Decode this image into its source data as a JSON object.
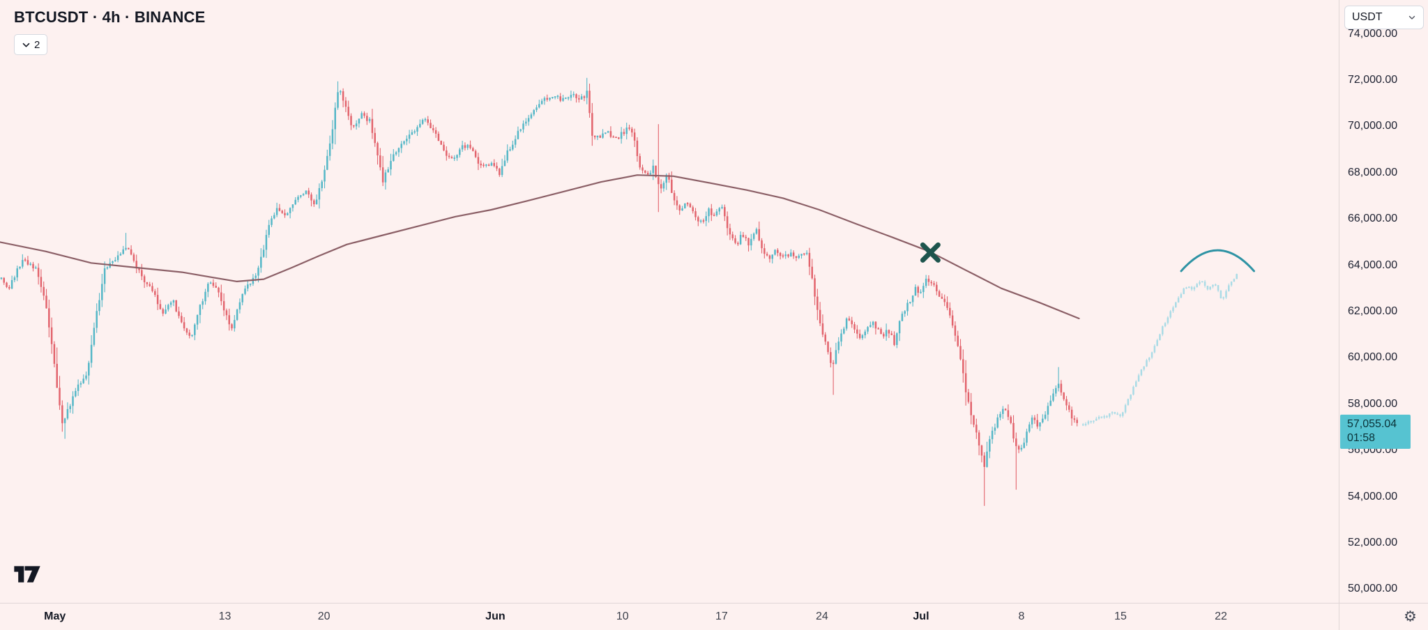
{
  "app": {
    "symbol_title": "BTCUSDT · 4h · BINANCE",
    "indicators_badge": "2",
    "currency": "USDT"
  },
  "colors": {
    "background": "#fdf1f0",
    "candle_up": "#54b7c7",
    "candle_down": "#e2636c",
    "candle_ghost": "#a9dbe6",
    "ma_line": "#8b5f66",
    "x_marker": "#1d544d",
    "arc_drawing": "#2e93a4",
    "axis_text": "#131722",
    "price_tag_bg": "#56c3d1",
    "price_tag_text": "#0a3238"
  },
  "last_price": {
    "label": "57,055.04",
    "countdown": "01:58",
    "value": 57055.04
  },
  "price_axis": {
    "labels": [
      "74,000.00",
      "72,000.00",
      "70,000.00",
      "68,000.00",
      "66,000.00",
      "64,000.00",
      "62,000.00",
      "60,000.00",
      "58,000.00",
      "56,000.00",
      "54,000.00",
      "52,000.00",
      "50,000.00"
    ],
    "values": [
      74000,
      72000,
      70000,
      68000,
      66000,
      64000,
      62000,
      60000,
      58000,
      56000,
      54000,
      52000,
      50000
    ]
  },
  "time_axis": {
    "labels": [
      {
        "text": "May",
        "x": 0.041,
        "major": true
      },
      {
        "text": "13",
        "x": 0.168,
        "major": false
      },
      {
        "text": "20",
        "x": 0.242,
        "major": false
      },
      {
        "text": "Jun",
        "x": 0.37,
        "major": true
      },
      {
        "text": "10",
        "x": 0.465,
        "major": false
      },
      {
        "text": "17",
        "x": 0.539,
        "major": false
      },
      {
        "text": "24",
        "x": 0.614,
        "major": false
      },
      {
        "text": "Jul",
        "x": 0.688,
        "major": true
      },
      {
        "text": "8",
        "x": 0.763,
        "major": false
      },
      {
        "text": "15",
        "x": 0.837,
        "major": false
      },
      {
        "text": "22",
        "x": 0.912,
        "major": false
      }
    ]
  },
  "chart_data": {
    "type": "candlestick",
    "symbol": "BTCUSDT",
    "interval": "4h",
    "exchange": "BINANCE",
    "price_top": 75466,
    "price_bottom": 49410,
    "real_range": [
      0.001,
      0.806
    ],
    "ghost_range": [
      0.809,
      0.924
    ],
    "price_path": [
      [
        0,
        63500
      ],
      [
        0.007,
        63000
      ],
      [
        0.017,
        64300
      ],
      [
        0.027,
        63800
      ],
      [
        0.034,
        62500
      ],
      [
        0.041,
        59500
      ],
      [
        0.046,
        57200
      ],
      [
        0.051,
        57800
      ],
      [
        0.058,
        58800
      ],
      [
        0.065,
        59300
      ],
      [
        0.071,
        61500
      ],
      [
        0.078,
        63800
      ],
      [
        0.085,
        64200
      ],
      [
        0.095,
        64800
      ],
      [
        0.102,
        63900
      ],
      [
        0.109,
        63200
      ],
      [
        0.116,
        62700
      ],
      [
        0.122,
        61800
      ],
      [
        0.129,
        62500
      ],
      [
        0.136,
        61400
      ],
      [
        0.143,
        60900
      ],
      [
        0.15,
        62300
      ],
      [
        0.156,
        63400
      ],
      [
        0.163,
        62800
      ],
      [
        0.17,
        61700
      ],
      [
        0.173,
        61200
      ],
      [
        0.18,
        62700
      ],
      [
        0.187,
        63200
      ],
      [
        0.194,
        64000
      ],
      [
        0.201,
        65800
      ],
      [
        0.207,
        66400
      ],
      [
        0.214,
        66100
      ],
      [
        0.221,
        66800
      ],
      [
        0.228,
        67200
      ],
      [
        0.235,
        66600
      ],
      [
        0.241,
        67800
      ],
      [
        0.248,
        69800
      ],
      [
        0.253,
        71800
      ],
      [
        0.259,
        70600
      ],
      [
        0.264,
        69900
      ],
      [
        0.269,
        70500
      ],
      [
        0.276,
        70300
      ],
      [
        0.28,
        69400
      ],
      [
        0.286,
        67600
      ],
      [
        0.291,
        68400
      ],
      [
        0.298,
        69200
      ],
      [
        0.305,
        69500
      ],
      [
        0.312,
        69900
      ],
      [
        0.318,
        70400
      ],
      [
        0.325,
        69700
      ],
      [
        0.332,
        68900
      ],
      [
        0.339,
        68500
      ],
      [
        0.346,
        69200
      ],
      [
        0.352,
        69000
      ],
      [
        0.359,
        68200
      ],
      [
        0.366,
        68400
      ],
      [
        0.373,
        68000
      ],
      [
        0.38,
        69000
      ],
      [
        0.386,
        69600
      ],
      [
        0.393,
        70300
      ],
      [
        0.4,
        70900
      ],
      [
        0.407,
        71200
      ],
      [
        0.414,
        71400
      ],
      [
        0.42,
        71100
      ],
      [
        0.427,
        71300
      ],
      [
        0.434,
        71200
      ],
      [
        0.439,
        71500
      ],
      [
        0.442,
        69600
      ],
      [
        0.448,
        69600
      ],
      [
        0.454,
        69700
      ],
      [
        0.461,
        69500
      ],
      [
        0.468,
        69900
      ],
      [
        0.473,
        69700
      ],
      [
        0.478,
        68200
      ],
      [
        0.483,
        67800
      ],
      [
        0.488,
        68300
      ],
      [
        0.493,
        67200
      ],
      [
        0.498,
        67900
      ],
      [
        0.503,
        67000
      ],
      [
        0.509,
        66300
      ],
      [
        0.514,
        66800
      ],
      [
        0.518,
        66300
      ],
      [
        0.524,
        65800
      ],
      [
        0.529,
        66400
      ],
      [
        0.534,
        66100
      ],
      [
        0.539,
        66700
      ],
      [
        0.544,
        65500
      ],
      [
        0.55,
        64800
      ],
      [
        0.554,
        65400
      ],
      [
        0.559,
        64900
      ],
      [
        0.565,
        65600
      ],
      [
        0.57,
        64600
      ],
      [
        0.575,
        64200
      ],
      [
        0.58,
        64700
      ],
      [
        0.585,
        64300
      ],
      [
        0.59,
        64500
      ],
      [
        0.595,
        64400
      ],
      [
        0.602,
        64600
      ],
      [
        0.607,
        63300
      ],
      [
        0.612,
        61500
      ],
      [
        0.618,
        60300
      ],
      [
        0.622,
        59600
      ],
      [
        0.627,
        60900
      ],
      [
        0.633,
        61700
      ],
      [
        0.638,
        61300
      ],
      [
        0.643,
        60800
      ],
      [
        0.648,
        61200
      ],
      [
        0.653,
        61500
      ],
      [
        0.659,
        60900
      ],
      [
        0.663,
        61300
      ],
      [
        0.668,
        60600
      ],
      [
        0.673,
        61800
      ],
      [
        0.679,
        62400
      ],
      [
        0.684,
        63000
      ],
      [
        0.688,
        62800
      ],
      [
        0.692,
        63400
      ],
      [
        0.697,
        63100
      ],
      [
        0.702,
        62700
      ],
      [
        0.707,
        62300
      ],
      [
        0.713,
        61200
      ],
      [
        0.718,
        59800
      ],
      [
        0.722,
        58300
      ],
      [
        0.727,
        57200
      ],
      [
        0.731,
        56400
      ],
      [
        0.735,
        55200
      ],
      [
        0.74,
        56600
      ],
      [
        0.745,
        57300
      ],
      [
        0.75,
        57800
      ],
      [
        0.755,
        57200
      ],
      [
        0.76,
        55800
      ],
      [
        0.765,
        56400
      ],
      [
        0.77,
        57400
      ],
      [
        0.776,
        57000
      ],
      [
        0.781,
        57600
      ],
      [
        0.786,
        58300
      ],
      [
        0.79,
        58900
      ],
      [
        0.796,
        58100
      ],
      [
        0.801,
        57400
      ],
      [
        0.806,
        57055
      ]
    ],
    "ghost_path": [
      [
        0.808,
        57100
      ],
      [
        0.816,
        57300
      ],
      [
        0.824,
        57450
      ],
      [
        0.831,
        57600
      ],
      [
        0.837,
        57500
      ],
      [
        0.842,
        58100
      ],
      [
        0.848,
        58900
      ],
      [
        0.853,
        59500
      ],
      [
        0.859,
        60100
      ],
      [
        0.864,
        60700
      ],
      [
        0.869,
        61400
      ],
      [
        0.875,
        62100
      ],
      [
        0.88,
        62600
      ],
      [
        0.886,
        63100
      ],
      [
        0.891,
        62900
      ],
      [
        0.897,
        63400
      ],
      [
        0.902,
        62900
      ],
      [
        0.907,
        63200
      ],
      [
        0.913,
        62500
      ],
      [
        0.918,
        63100
      ],
      [
        0.924,
        63600
      ]
    ],
    "extremes": [
      {
        "x": 0.048,
        "kind": "low",
        "price": 56500
      },
      {
        "x": 0.095,
        "kind": "high",
        "price": 65400
      },
      {
        "x": 0.253,
        "kind": "high",
        "price": 71950
      },
      {
        "x": 0.439,
        "kind": "high",
        "price": 72100
      },
      {
        "x": 0.492,
        "kind": "high",
        "price": 70100
      },
      {
        "x": 0.492,
        "kind": "low",
        "price": 66300
      },
      {
        "x": 0.622,
        "kind": "low",
        "price": 58400
      },
      {
        "x": 0.735,
        "kind": "low",
        "price": 53600
      },
      {
        "x": 0.76,
        "kind": "low",
        "price": 54300
      },
      {
        "x": 0.79,
        "kind": "high",
        "price": 59600
      }
    ],
    "ma_path": [
      [
        0,
        65000
      ],
      [
        0.034,
        64600
      ],
      [
        0.068,
        64100
      ],
      [
        0.102,
        63900
      ],
      [
        0.136,
        63700
      ],
      [
        0.156,
        63500
      ],
      [
        0.177,
        63300
      ],
      [
        0.197,
        63400
      ],
      [
        0.218,
        63900
      ],
      [
        0.238,
        64400
      ],
      [
        0.259,
        64900
      ],
      [
        0.286,
        65300
      ],
      [
        0.313,
        65700
      ],
      [
        0.34,
        66100
      ],
      [
        0.367,
        66400
      ],
      [
        0.395,
        66800
      ],
      [
        0.422,
        67200
      ],
      [
        0.449,
        67600
      ],
      [
        0.476,
        67900
      ],
      [
        0.503,
        67850
      ],
      [
        0.531,
        67550
      ],
      [
        0.558,
        67250
      ],
      [
        0.585,
        66900
      ],
      [
        0.612,
        66400
      ],
      [
        0.639,
        65800
      ],
      [
        0.667,
        65200
      ],
      [
        0.694,
        64600
      ],
      [
        0.721,
        63800
      ],
      [
        0.748,
        63000
      ],
      [
        0.776,
        62400
      ],
      [
        0.806,
        61700
      ]
    ],
    "x_marker": {
      "x": 0.695,
      "price": 64550
    },
    "arc": {
      "x1": 0.8823,
      "x2": 0.9367,
      "end_price": 63750,
      "apex_price": 64650
    }
  }
}
